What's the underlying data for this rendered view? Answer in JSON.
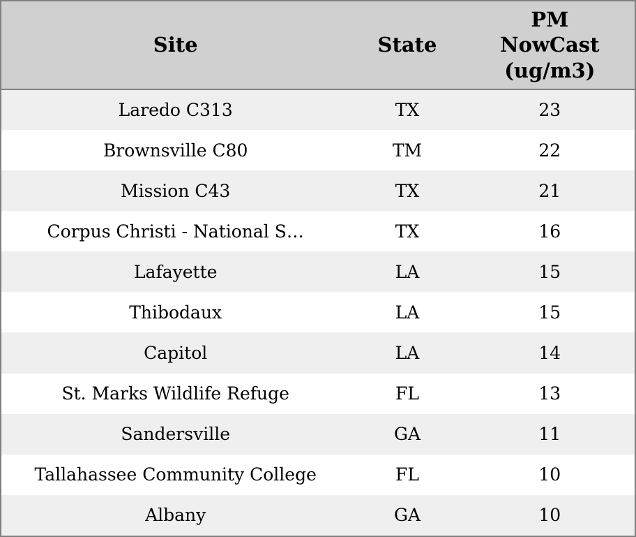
{
  "table": {
    "columns": [
      {
        "id": "site",
        "label": "Site"
      },
      {
        "id": "state",
        "label": "State"
      },
      {
        "id": "pm",
        "label": "PM\nNowCast\n(ug/m3)"
      }
    ],
    "rows": [
      {
        "site": "Laredo C313",
        "state": "TX",
        "pm": "23"
      },
      {
        "site": "Brownsville C80",
        "state": "TM",
        "pm": "22"
      },
      {
        "site": "Mission C43",
        "state": "TX",
        "pm": "21"
      },
      {
        "site": "Corpus Christi - National S…",
        "state": "TX",
        "pm": "16"
      },
      {
        "site": "Lafayette",
        "state": "LA",
        "pm": "15"
      },
      {
        "site": "Thibodaux",
        "state": "LA",
        "pm": "15"
      },
      {
        "site": "Capitol",
        "state": "LA",
        "pm": "14"
      },
      {
        "site": "St. Marks Wildlife Refuge",
        "state": "FL",
        "pm": "13"
      },
      {
        "site": "Sandersville",
        "state": "GA",
        "pm": "11"
      },
      {
        "site": "Tallahassee Community College",
        "state": "FL",
        "pm": "10"
      },
      {
        "site": "Albany",
        "state": "GA",
        "pm": "10"
      }
    ],
    "colors": {
      "header_bg": "#d0d0d0",
      "stripe_bg": "#efefef",
      "row_bg": "#ffffff",
      "border": "#808080",
      "text": "#000000"
    }
  }
}
